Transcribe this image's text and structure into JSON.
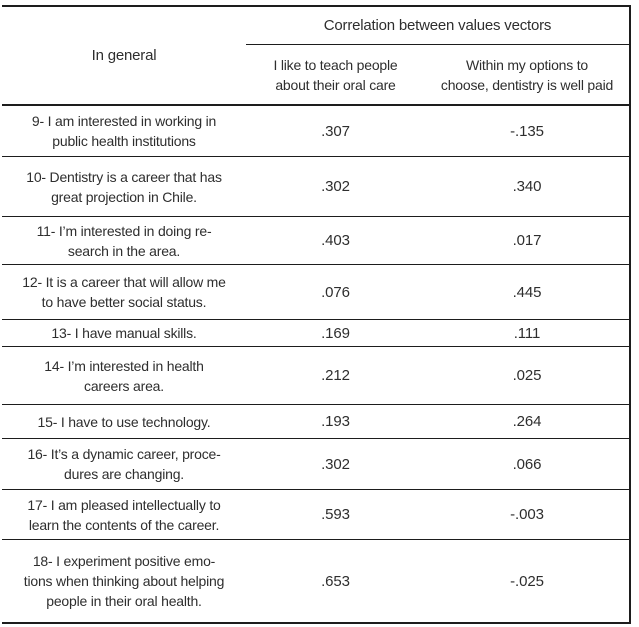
{
  "table": {
    "col1_header": "In general",
    "span_header": "Correlation between values vectors",
    "col_headers": [
      "I like to teach people\nabout their oral care",
      "Within my options to\nchoose, dentistry is well paid"
    ],
    "rows": [
      {
        "label": "9- I am interested in working in\npublic health institutions",
        "teach": ".307",
        "paid": "-.135"
      },
      {
        "label": "10- Dentistry is a career that has\ngreat projection in Chile.",
        "teach": ".302",
        "paid": ".340"
      },
      {
        "label": "11- I’m interested in doing re-\nsearch in the area.",
        "teach": ".403",
        "paid": ".017"
      },
      {
        "label": "12- It is a career that will allow me\nto have better social status.",
        "teach": ".076",
        "paid": ".445"
      },
      {
        "label": "13- I have manual skills.",
        "teach": ".169",
        "paid": ".111"
      },
      {
        "label": "14- I’m interested in health\ncareers area.",
        "teach": ".212",
        "paid": ".025"
      },
      {
        "label": "15- I have to use technology.",
        "teach": ".193",
        "paid": ".264"
      },
      {
        "label": "16- It’s a dynamic career, proce-\ndures are changing.",
        "teach": ".302",
        "paid": ".066"
      },
      {
        "label": "17- I am pleased intellectually to\nlearn the contents of the career.",
        "teach": ".593",
        "paid": "-.003"
      },
      {
        "label": "18- I experiment positive emo-\ntions when thinking about helping\npeople in their oral health.",
        "teach": ".653",
        "paid": "-.025"
      }
    ],
    "colors": {
      "rule": "#1d1d1d",
      "text": "#2e2e2e",
      "background": "#ffffff"
    }
  },
  "chart_data": {
    "type": "table",
    "title": "Correlation between values vectors",
    "row_header": "In general",
    "columns": [
      "I like to teach people about their oral care",
      "Within my options to choose, dentistry is well paid"
    ],
    "categories": [
      "9- I am interested in working in public health institutions",
      "10- Dentistry is a career that has great projection in Chile.",
      "11- I'm interested in doing research in the area.",
      "12- It is a career that will allow me to have better social status.",
      "13- I have manual skills.",
      "14- I'm interested in health careers area.",
      "15- I have to use technology.",
      "16- It's a dynamic career, procedures are changing.",
      "17- I am pleased intellectually to learn the contents of the career.",
      "18- I experiment positive emotions when thinking about helping people in their oral health."
    ],
    "series": [
      {
        "name": "I like to teach people about their oral care",
        "values": [
          0.307,
          0.302,
          0.403,
          0.076,
          0.169,
          0.212,
          0.193,
          0.302,
          0.593,
          0.653
        ]
      },
      {
        "name": "Within my options to choose, dentistry is well paid",
        "values": [
          -0.135,
          0.34,
          0.017,
          0.445,
          0.111,
          0.025,
          0.264,
          0.066,
          -0.003,
          -0.025
        ]
      }
    ]
  }
}
